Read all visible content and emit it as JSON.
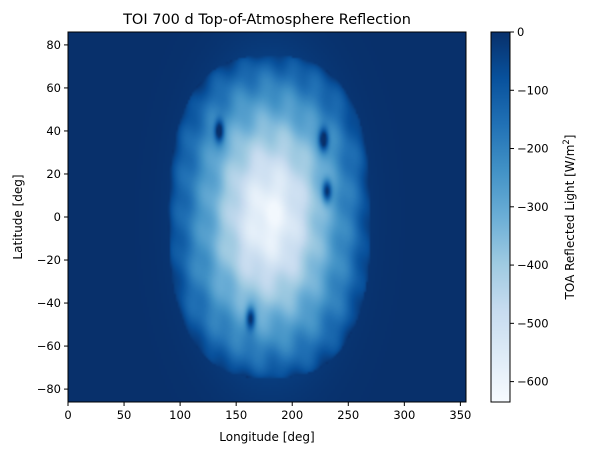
{
  "chart_data": {
    "type": "heatmap",
    "title": "TOI 700 d Top-of-Atmosphere Reflection",
    "xlabel": "Longitude [deg]",
    "ylabel": "Latitude [deg]",
    "xlim": [
      0,
      355
    ],
    "ylim": [
      -86,
      86
    ],
    "xticks": [
      0,
      50,
      100,
      150,
      200,
      250,
      300,
      350
    ],
    "yticks": [
      -80,
      -60,
      -40,
      -20,
      0,
      20,
      40,
      60,
      80
    ],
    "colorbar": {
      "label_main": "TOA Reflected Light [W/m",
      "label_sup": "2",
      "label_end": "]",
      "range": [
        -635,
        0
      ],
      "ticks": [
        0,
        -100,
        -200,
        -300,
        -400,
        -500,
        -600
      ],
      "tick_labels": [
        "0",
        "−100",
        "−200",
        "−300",
        "−400",
        "−500",
        "−600"
      ],
      "colormap": "Blues_r",
      "colors": [
        "#f7fbff",
        "#deebf7",
        "#c6dbef",
        "#9ecae1",
        "#6baed6",
        "#4292c6",
        "#2171b5",
        "#08519c",
        "#08306b"
      ]
    },
    "field": {
      "background_value": 0,
      "bright_region": {
        "lon_range": [
          90,
          270
        ],
        "lat_range": [
          -75,
          75
        ],
        "center_lon": 180,
        "center_lat": 0,
        "min_value": -620
      },
      "dark_spots": [
        {
          "lon": 228,
          "lat": 36
        },
        {
          "lon": 231,
          "lat": 12
        },
        {
          "lon": 163,
          "lat": -47
        },
        {
          "lon": 135,
          "lat": 40
        }
      ]
    }
  }
}
